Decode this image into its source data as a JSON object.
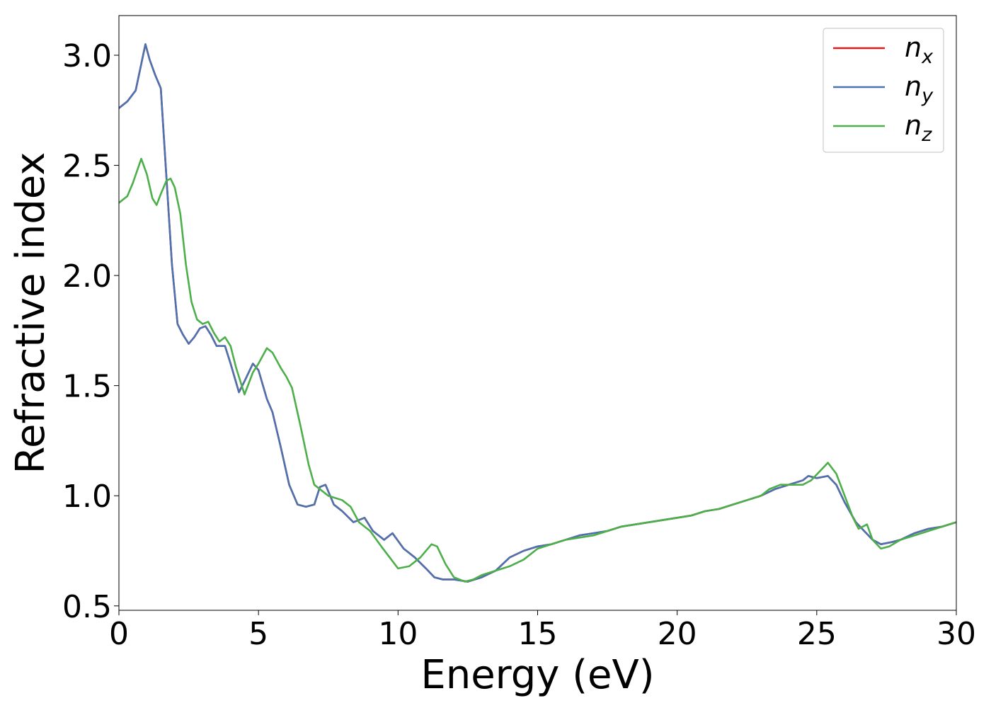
{
  "chart_data": {
    "type": "line",
    "xlabel": "Energy (eV)",
    "ylabel": "Refractive index",
    "xlim": [
      0,
      30
    ],
    "ylim": [
      0.48,
      3.18
    ],
    "xticks": [
      0,
      5,
      10,
      15,
      20,
      25,
      30
    ],
    "yticks": [
      0.5,
      1.0,
      1.5,
      2.0,
      2.5,
      3.0
    ],
    "xtick_labels": [
      "0",
      "5",
      "10",
      "15",
      "20",
      "25",
      "30"
    ],
    "ytick_labels": [
      "0.5",
      "1.0",
      "1.5",
      "2.0",
      "2.5",
      "3.0"
    ],
    "grid": false,
    "legend": "top-right",
    "series": [
      {
        "name": "n_x",
        "label_base": "n",
        "label_sub": "x",
        "color": "#e41a1c",
        "x": [
          0,
          0.3,
          0.6,
          0.8,
          0.95,
          1.1,
          1.3,
          1.5,
          1.7,
          1.9,
          2.1,
          2.3,
          2.5,
          2.7,
          2.9,
          3.1,
          3.3,
          3.5,
          3.8,
          4.0,
          4.3,
          4.5,
          4.8,
          5.0,
          5.3,
          5.5,
          5.8,
          6.1,
          6.4,
          6.7,
          7.0,
          7.2,
          7.4,
          7.7,
          8.0,
          8.4,
          8.8,
          9.1,
          9.5,
          9.8,
          10.2,
          10.6,
          11.0,
          11.3,
          11.6,
          12.0,
          12.5,
          13.0,
          13.5,
          14.0,
          14.5,
          15.0,
          15.5,
          16.0,
          16.5,
          17.0,
          17.5,
          18.0,
          18.5,
          19.0,
          19.5,
          20.0,
          20.5,
          21.0,
          21.5,
          22.0,
          22.5,
          23.0,
          23.5,
          24.0,
          24.5,
          24.7,
          25.0,
          25.4,
          25.7,
          26.0,
          26.4,
          26.7,
          27.0,
          27.3,
          27.7,
          28.0,
          28.5,
          29.0,
          29.5,
          30.0
        ],
        "y": [
          2.76,
          2.79,
          2.84,
          2.96,
          3.05,
          2.98,
          2.91,
          2.85,
          2.45,
          2.05,
          1.78,
          1.73,
          1.69,
          1.72,
          1.76,
          1.77,
          1.73,
          1.68,
          1.68,
          1.6,
          1.47,
          1.52,
          1.6,
          1.57,
          1.44,
          1.38,
          1.22,
          1.05,
          0.96,
          0.95,
          0.96,
          1.04,
          1.05,
          0.96,
          0.93,
          0.88,
          0.9,
          0.84,
          0.8,
          0.83,
          0.76,
          0.72,
          0.67,
          0.63,
          0.62,
          0.62,
          0.61,
          0.63,
          0.66,
          0.72,
          0.75,
          0.77,
          0.78,
          0.8,
          0.82,
          0.83,
          0.84,
          0.86,
          0.87,
          0.88,
          0.89,
          0.9,
          0.91,
          0.93,
          0.94,
          0.96,
          0.98,
          1.0,
          1.03,
          1.05,
          1.07,
          1.09,
          1.08,
          1.09,
          1.05,
          0.97,
          0.88,
          0.84,
          0.8,
          0.78,
          0.79,
          0.8,
          0.83,
          0.85,
          0.86,
          0.88
        ]
      },
      {
        "name": "n_y",
        "label_base": "n",
        "label_sub": "y",
        "color": "#4c72b0",
        "x": [
          0,
          0.3,
          0.6,
          0.8,
          0.95,
          1.1,
          1.3,
          1.5,
          1.7,
          1.9,
          2.1,
          2.3,
          2.5,
          2.7,
          2.9,
          3.1,
          3.3,
          3.5,
          3.8,
          4.0,
          4.3,
          4.5,
          4.8,
          5.0,
          5.3,
          5.5,
          5.8,
          6.1,
          6.4,
          6.7,
          7.0,
          7.2,
          7.4,
          7.7,
          8.0,
          8.4,
          8.8,
          9.1,
          9.5,
          9.8,
          10.2,
          10.6,
          11.0,
          11.3,
          11.6,
          12.0,
          12.5,
          13.0,
          13.5,
          14.0,
          14.5,
          15.0,
          15.5,
          16.0,
          16.5,
          17.0,
          17.5,
          18.0,
          18.5,
          19.0,
          19.5,
          20.0,
          20.5,
          21.0,
          21.5,
          22.0,
          22.5,
          23.0,
          23.5,
          24.0,
          24.5,
          24.7,
          25.0,
          25.4,
          25.7,
          26.0,
          26.4,
          26.7,
          27.0,
          27.3,
          27.7,
          28.0,
          28.5,
          29.0,
          29.5,
          30.0
        ],
        "y": [
          2.76,
          2.79,
          2.84,
          2.96,
          3.05,
          2.98,
          2.91,
          2.85,
          2.45,
          2.05,
          1.78,
          1.73,
          1.69,
          1.72,
          1.76,
          1.77,
          1.73,
          1.68,
          1.68,
          1.6,
          1.47,
          1.52,
          1.6,
          1.57,
          1.44,
          1.38,
          1.22,
          1.05,
          0.96,
          0.95,
          0.96,
          1.04,
          1.05,
          0.96,
          0.93,
          0.88,
          0.9,
          0.84,
          0.8,
          0.83,
          0.76,
          0.72,
          0.67,
          0.63,
          0.62,
          0.62,
          0.61,
          0.63,
          0.66,
          0.72,
          0.75,
          0.77,
          0.78,
          0.8,
          0.82,
          0.83,
          0.84,
          0.86,
          0.87,
          0.88,
          0.89,
          0.9,
          0.91,
          0.93,
          0.94,
          0.96,
          0.98,
          1.0,
          1.03,
          1.05,
          1.07,
          1.09,
          1.08,
          1.09,
          1.05,
          0.97,
          0.88,
          0.84,
          0.8,
          0.78,
          0.79,
          0.8,
          0.83,
          0.85,
          0.86,
          0.88
        ]
      },
      {
        "name": "n_z",
        "label_base": "n",
        "label_sub": "z",
        "color": "#4daf4a",
        "x": [
          0,
          0.3,
          0.5,
          0.8,
          1.0,
          1.2,
          1.35,
          1.5,
          1.7,
          1.85,
          2.0,
          2.2,
          2.4,
          2.6,
          2.8,
          3.0,
          3.2,
          3.4,
          3.6,
          3.8,
          4.0,
          4.2,
          4.5,
          4.8,
          5.0,
          5.3,
          5.5,
          5.8,
          6.0,
          6.2,
          6.5,
          6.8,
          7.0,
          7.5,
          8.0,
          8.3,
          8.6,
          9.0,
          9.4,
          9.7,
          10.0,
          10.4,
          10.8,
          11.2,
          11.4,
          11.7,
          12.0,
          12.4,
          12.7,
          13.0,
          13.5,
          14.0,
          14.5,
          15.0,
          15.5,
          16.0,
          16.5,
          17.0,
          17.5,
          18.0,
          18.5,
          19.0,
          19.5,
          20.0,
          20.5,
          21.0,
          21.5,
          22.0,
          22.5,
          23.0,
          23.3,
          23.7,
          24.0,
          24.5,
          24.8,
          25.1,
          25.4,
          25.7,
          26.0,
          26.3,
          26.5,
          26.8,
          27.0,
          27.3,
          27.6,
          28.0,
          28.5,
          29.0,
          29.5,
          30.0
        ],
        "y": [
          2.33,
          2.36,
          2.42,
          2.53,
          2.46,
          2.35,
          2.32,
          2.37,
          2.43,
          2.44,
          2.4,
          2.28,
          2.05,
          1.88,
          1.8,
          1.78,
          1.79,
          1.74,
          1.7,
          1.72,
          1.68,
          1.58,
          1.46,
          1.56,
          1.6,
          1.67,
          1.65,
          1.58,
          1.54,
          1.49,
          1.32,
          1.14,
          1.05,
          1.0,
          0.98,
          0.95,
          0.88,
          0.84,
          0.77,
          0.72,
          0.67,
          0.68,
          0.72,
          0.78,
          0.77,
          0.69,
          0.63,
          0.61,
          0.62,
          0.64,
          0.66,
          0.68,
          0.71,
          0.76,
          0.78,
          0.8,
          0.81,
          0.82,
          0.84,
          0.86,
          0.87,
          0.88,
          0.89,
          0.9,
          0.91,
          0.93,
          0.94,
          0.96,
          0.98,
          1.0,
          1.03,
          1.05,
          1.05,
          1.05,
          1.07,
          1.11,
          1.15,
          1.1,
          1.0,
          0.9,
          0.85,
          0.87,
          0.8,
          0.76,
          0.77,
          0.8,
          0.82,
          0.84,
          0.86,
          0.88
        ]
      }
    ]
  }
}
